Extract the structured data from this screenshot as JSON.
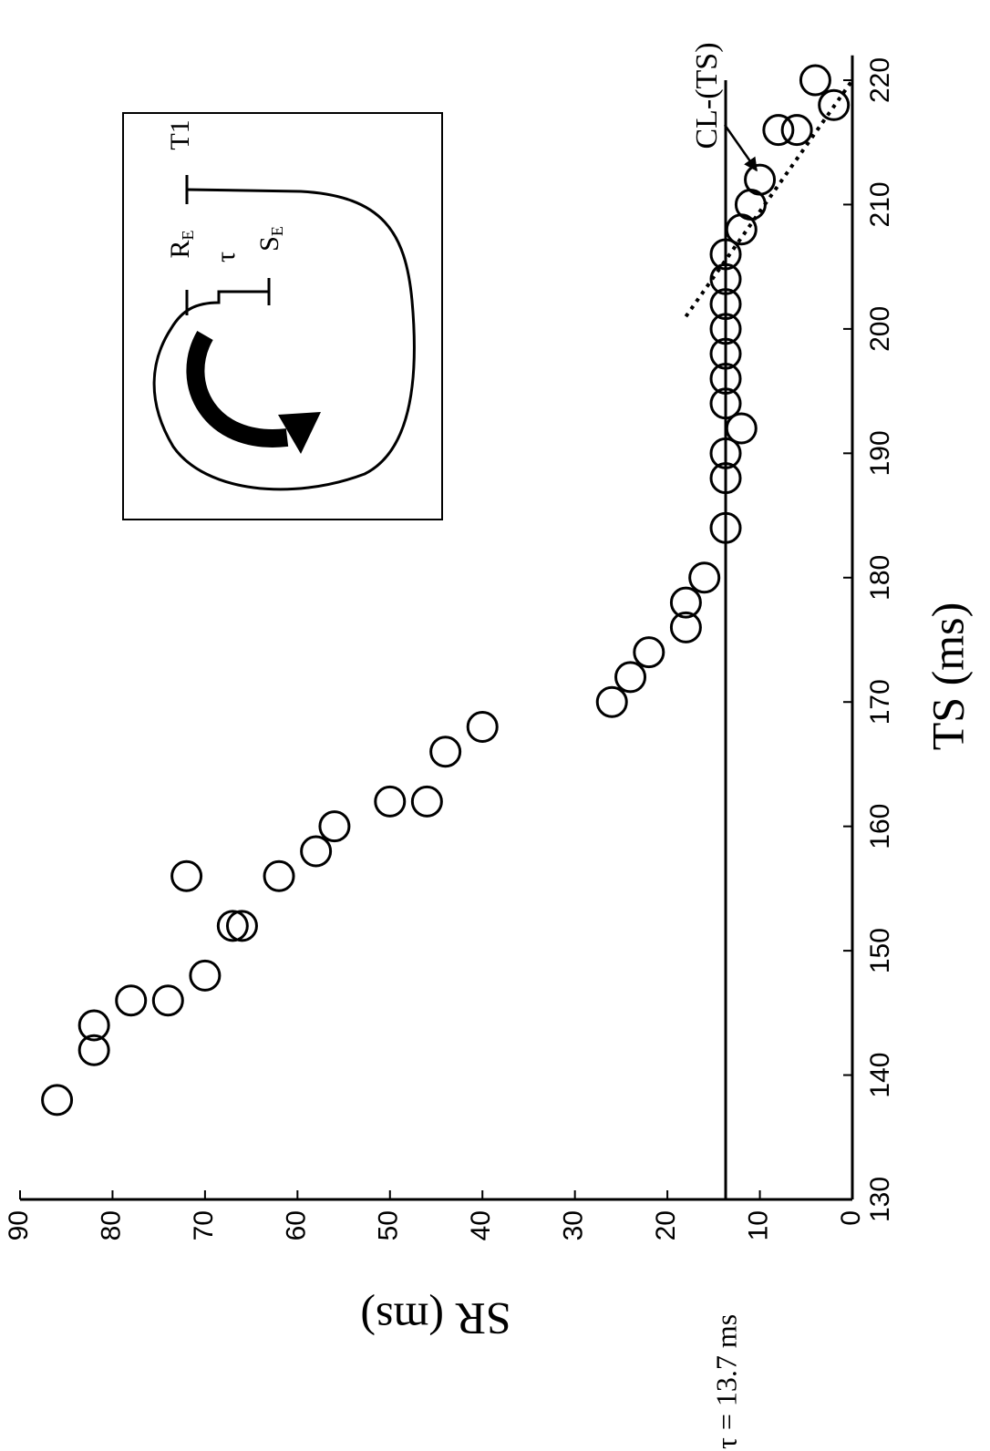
{
  "chart_data": {
    "type": "scatter",
    "xlabel": "TS (ms)",
    "ylabel": "SR (ms)",
    "x": [
      138,
      142,
      144,
      146,
      146,
      148,
      152,
      152,
      156,
      156,
      158,
      160,
      162,
      162,
      166,
      168,
      170,
      172,
      174,
      176,
      178,
      180,
      184,
      188,
      190,
      192,
      194,
      196,
      198,
      200,
      202,
      204,
      206,
      208,
      210,
      212,
      216,
      216,
      218,
      220
    ],
    "values": [
      86,
      82,
      82,
      78,
      74,
      70,
      67,
      66,
      72,
      62,
      58,
      56,
      50,
      46,
      44,
      40,
      26,
      24,
      22,
      18,
      18,
      16,
      13.7,
      13.7,
      13.7,
      12,
      13.7,
      13.7,
      13.7,
      13.7,
      13.7,
      13.7,
      13.7,
      12,
      11,
      10,
      8,
      6,
      2,
      4
    ],
    "color": "#000000",
    "xlim": [
      130,
      222
    ],
    "xticks": [
      130,
      140,
      150,
      160,
      170,
      180,
      190,
      200,
      210,
      220
    ],
    "ylim": [
      0,
      90
    ],
    "yticks": [
      0,
      10,
      20,
      30,
      40,
      50,
      60,
      70,
      80,
      90
    ],
    "hline": {
      "value": 13.7,
      "label": "τ = 13.7 ms"
    },
    "fit_line": {
      "label": "CL-(TS)",
      "x": [
        201,
        220
      ],
      "values": [
        18,
        0
      ]
    },
    "inset": {
      "labels": [
        "R",
        "τ",
        "S",
        "T1"
      ],
      "subscripts": [
        "E",
        "E"
      ]
    }
  }
}
